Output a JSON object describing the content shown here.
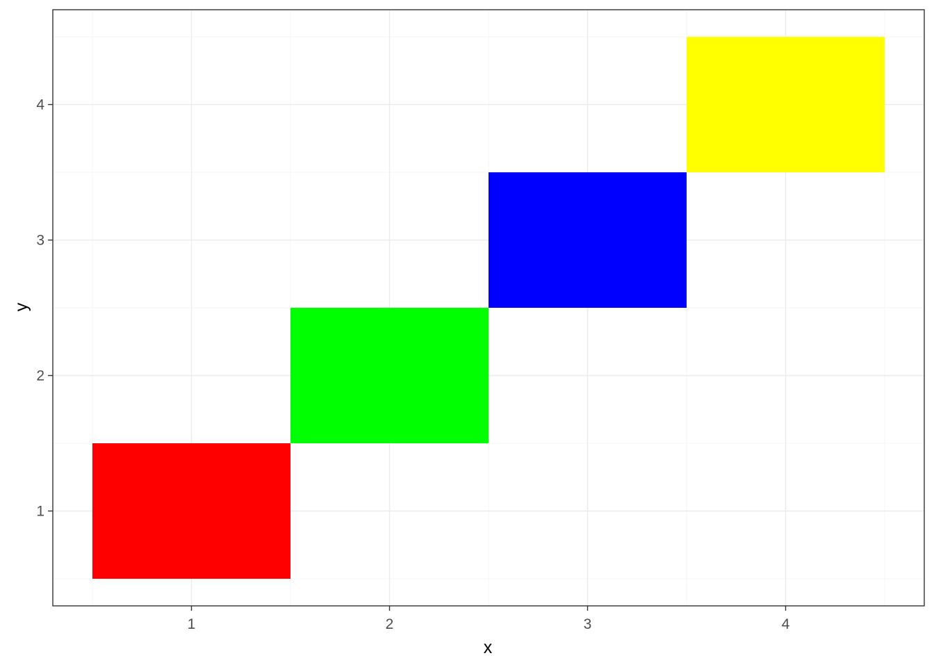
{
  "chart_data": {
    "type": "heatmap",
    "xlabel": "x",
    "ylabel": "y",
    "xlim": [
      0.3,
      4.7
    ],
    "ylim": [
      0.3,
      4.7
    ],
    "x_ticks": [
      1,
      2,
      3,
      4
    ],
    "y_ticks": [
      1,
      2,
      3,
      4
    ],
    "grid": true,
    "legend": "none",
    "tiles": [
      {
        "x": 1,
        "y": 1,
        "color": "#ff0000"
      },
      {
        "x": 2,
        "y": 2,
        "color": "#00ff00"
      },
      {
        "x": 3,
        "y": 3,
        "color": "#0000ff"
      },
      {
        "x": 4,
        "y": 4,
        "color": "#ffff00"
      }
    ]
  }
}
